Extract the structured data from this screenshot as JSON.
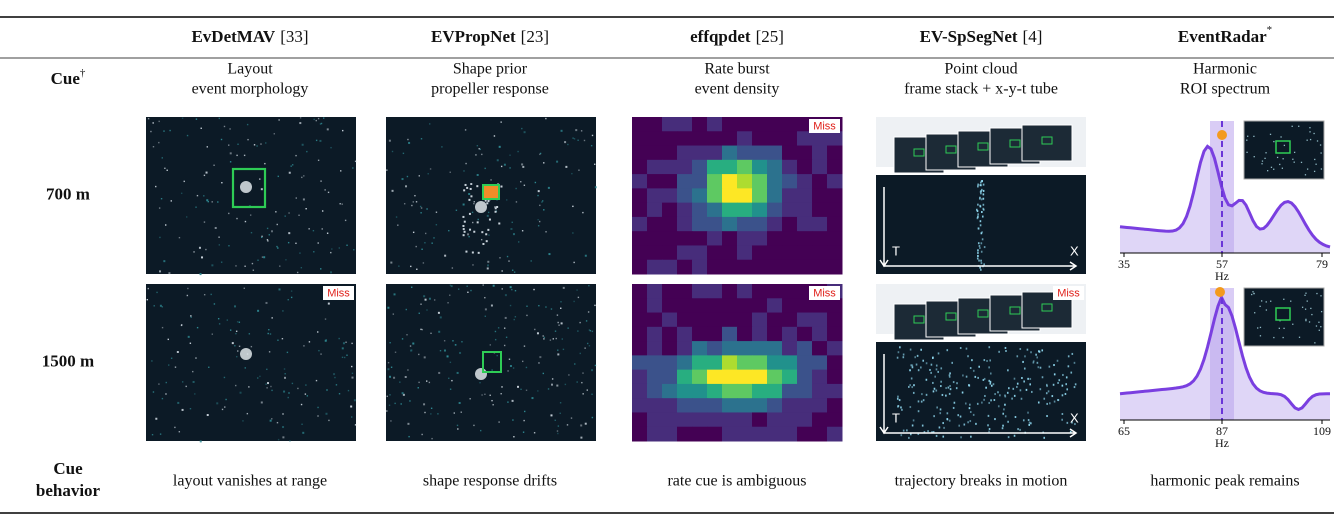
{
  "table": {
    "columns": [
      {
        "name": "EvDetMAV",
        "ref": "[33]"
      },
      {
        "name": "EVPropNet",
        "ref": "[23]"
      },
      {
        "name": "effqpdet",
        "ref": "[25]"
      },
      {
        "name": "EV-SpSegNet",
        "ref": "[4]"
      },
      {
        "name": "EventRadar",
        "mark": "*"
      }
    ],
    "cue_label": "Cue",
    "cue_label_mark": "†",
    "cue": [
      [
        "Layout",
        "event morphology"
      ],
      [
        "Shape prior",
        "propeller response"
      ],
      [
        "Rate burst",
        "event density"
      ],
      [
        "Point cloud",
        "frame stack + x-y-t tube"
      ],
      [
        "Harmonic",
        "ROI spectrum"
      ]
    ],
    "rows": [
      {
        "label": "700 m",
        "panels": [
          {},
          {},
          {
            "miss": "Miss"
          },
          {
            "axis_labels": [
              "T",
              "X"
            ]
          },
          {
            "ticks": [
              "35",
              "57",
              "79"
            ],
            "unit": "Hz"
          }
        ]
      },
      {
        "label": "1500 m",
        "panels": [
          {
            "miss": "Miss"
          },
          {},
          {
            "miss": "Miss"
          },
          {
            "miss": "Miss",
            "axis_labels": [
              "T",
              "X"
            ]
          },
          {
            "ticks": [
              "65",
              "87",
              "109"
            ],
            "unit": "Hz"
          }
        ]
      }
    ],
    "behavior_label": [
      "Cue",
      "behavior"
    ],
    "behavior": [
      "layout vanishes at range",
      "shape response drifts",
      "rate cue is ambiguous",
      "trajectory breaks in motion",
      "harmonic peak remains"
    ]
  }
}
